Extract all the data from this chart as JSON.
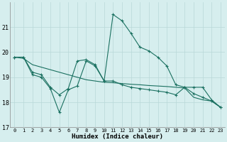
{
  "xlabel": "Humidex (Indice chaleur)",
  "bg_color": "#d6eeee",
  "line_color": "#1a7060",
  "grid_color": "#b8d8d8",
  "xlim": [
    -0.5,
    23.5
  ],
  "ylim": [
    17,
    22
  ],
  "yticks": [
    17,
    18,
    19,
    20,
    21
  ],
  "xticks": [
    0,
    1,
    2,
    3,
    4,
    5,
    6,
    7,
    8,
    9,
    10,
    11,
    12,
    13,
    14,
    15,
    16,
    17,
    18,
    19,
    20,
    21,
    22,
    23
  ],
  "curve1_x": [
    0,
    1,
    2,
    3,
    4,
    5,
    6,
    7,
    8,
    9,
    10,
    11,
    12,
    13,
    14,
    15,
    16,
    17,
    18,
    19,
    20,
    21,
    22,
    23
  ],
  "curve1_y": [
    19.8,
    19.8,
    19.2,
    19.1,
    18.6,
    18.3,
    18.55,
    19.65,
    19.7,
    19.5,
    18.85,
    21.5,
    21.25,
    20.75,
    20.2,
    20.05,
    19.8,
    19.45,
    18.7,
    18.6,
    18.35,
    18.2,
    18.05,
    17.8
  ],
  "curve2_x": [
    0,
    1,
    2,
    3,
    4,
    5,
    6,
    7,
    8,
    9,
    10,
    11,
    12,
    13,
    14,
    15,
    16,
    17,
    18,
    19,
    20,
    21,
    22,
    23
  ],
  "curve2_y": [
    19.8,
    19.8,
    19.1,
    19.0,
    18.55,
    17.6,
    18.5,
    18.65,
    19.65,
    19.45,
    18.85,
    18.85,
    18.7,
    18.6,
    18.55,
    18.5,
    18.45,
    18.4,
    18.3,
    18.6,
    18.6,
    18.6,
    18.1,
    17.8
  ],
  "curve3_x": [
    0,
    1,
    2,
    3,
    4,
    5,
    6,
    7,
    8,
    9,
    10,
    11,
    12,
    13,
    14,
    15,
    16,
    17,
    18,
    19,
    20,
    21,
    22,
    23
  ],
  "curve3_y": [
    19.8,
    19.75,
    19.5,
    19.4,
    19.3,
    19.2,
    19.1,
    19.0,
    18.9,
    18.85,
    18.8,
    18.78,
    18.75,
    18.72,
    18.7,
    18.67,
    18.65,
    18.63,
    18.6,
    18.57,
    18.2,
    18.1,
    18.05,
    17.8
  ]
}
